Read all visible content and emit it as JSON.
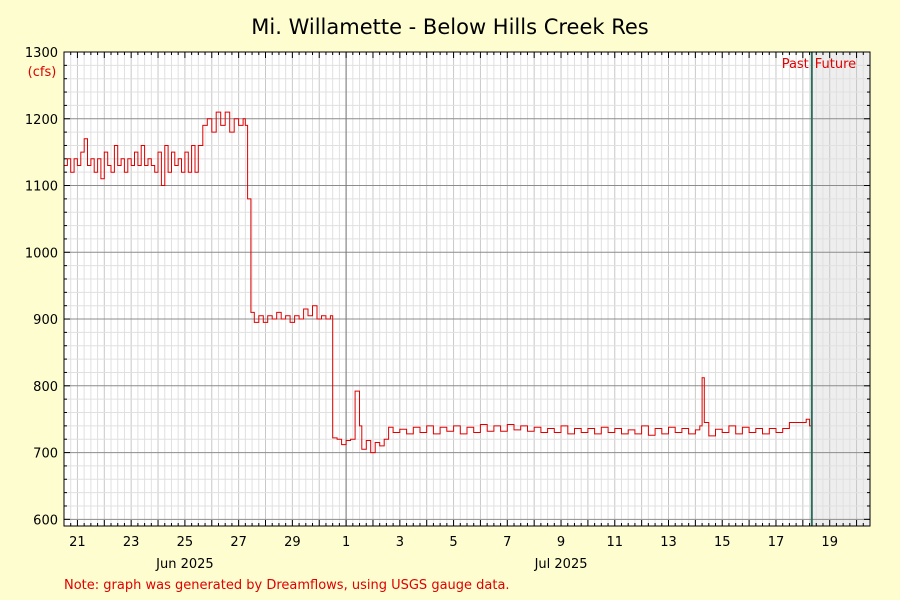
{
  "chart_data": {
    "type": "line",
    "title": "Mi. Willamette - Below Hills Creek Res",
    "ylabel": "(cfs)",
    "ylim": [
      590,
      1300
    ],
    "y_ticks": [
      600,
      700,
      800,
      900,
      1000,
      1100,
      1200,
      1300
    ],
    "xlim": [
      "2025-06-20T12:00",
      "2025-07-20T12:00"
    ],
    "x_tick_labels": [
      {
        "date": "2025-06-21",
        "label": "21"
      },
      {
        "date": "2025-06-23",
        "label": "23"
      },
      {
        "date": "2025-06-25",
        "label": "25"
      },
      {
        "date": "2025-06-27",
        "label": "27"
      },
      {
        "date": "2025-06-29",
        "label": "29"
      },
      {
        "date": "2025-07-01",
        "label": "1"
      },
      {
        "date": "2025-07-03",
        "label": "3"
      },
      {
        "date": "2025-07-05",
        "label": "5"
      },
      {
        "date": "2025-07-07",
        "label": "7"
      },
      {
        "date": "2025-07-09",
        "label": "9"
      },
      {
        "date": "2025-07-11",
        "label": "11"
      },
      {
        "date": "2025-07-13",
        "label": "13"
      },
      {
        "date": "2025-07-15",
        "label": "15"
      },
      {
        "date": "2025-07-17",
        "label": "17"
      },
      {
        "date": "2025-07-19",
        "label": "19"
      }
    ],
    "month_labels": [
      {
        "date": "2025-06-25",
        "label": "Jun 2025"
      },
      {
        "date": "2025-07-09",
        "label": "Jul 2025"
      }
    ],
    "past_label": "Past",
    "future_label": "Future",
    "now": "2025-07-18T08:00",
    "grid": true,
    "series": [
      {
        "color": "#e00000",
        "points": [
          [
            "2025-06-20T12:00",
            1130
          ],
          [
            "2025-06-20T15:00",
            1140
          ],
          [
            "2025-06-20T18:00",
            1120
          ],
          [
            "2025-06-20T21:00",
            1140
          ],
          [
            "2025-06-21T00:00",
            1130
          ],
          [
            "2025-06-21T03:00",
            1150
          ],
          [
            "2025-06-21T06:00",
            1170
          ],
          [
            "2025-06-21T09:00",
            1130
          ],
          [
            "2025-06-21T12:00",
            1140
          ],
          [
            "2025-06-21T15:00",
            1120
          ],
          [
            "2025-06-21T18:00",
            1140
          ],
          [
            "2025-06-21T21:00",
            1110
          ],
          [
            "2025-06-22T00:00",
            1150
          ],
          [
            "2025-06-22T03:00",
            1130
          ],
          [
            "2025-06-22T06:00",
            1120
          ],
          [
            "2025-06-22T09:00",
            1160
          ],
          [
            "2025-06-22T12:00",
            1130
          ],
          [
            "2025-06-22T15:00",
            1140
          ],
          [
            "2025-06-22T18:00",
            1120
          ],
          [
            "2025-06-22T21:00",
            1140
          ],
          [
            "2025-06-23T00:00",
            1130
          ],
          [
            "2025-06-23T03:00",
            1150
          ],
          [
            "2025-06-23T06:00",
            1130
          ],
          [
            "2025-06-23T09:00",
            1160
          ],
          [
            "2025-06-23T12:00",
            1130
          ],
          [
            "2025-06-23T15:00",
            1140
          ],
          [
            "2025-06-23T18:00",
            1130
          ],
          [
            "2025-06-23T21:00",
            1120
          ],
          [
            "2025-06-24T00:00",
            1150
          ],
          [
            "2025-06-24T03:00",
            1100
          ],
          [
            "2025-06-24T06:00",
            1160
          ],
          [
            "2025-06-24T09:00",
            1120
          ],
          [
            "2025-06-24T12:00",
            1150
          ],
          [
            "2025-06-24T15:00",
            1130
          ],
          [
            "2025-06-24T18:00",
            1140
          ],
          [
            "2025-06-24T21:00",
            1120
          ],
          [
            "2025-06-25T00:00",
            1150
          ],
          [
            "2025-06-25T03:00",
            1120
          ],
          [
            "2025-06-25T06:00",
            1160
          ],
          [
            "2025-06-25T09:00",
            1120
          ],
          [
            "2025-06-25T12:00",
            1160
          ],
          [
            "2025-06-25T16:00",
            1190
          ],
          [
            "2025-06-25T20:00",
            1200
          ],
          [
            "2025-06-26T00:00",
            1180
          ],
          [
            "2025-06-26T04:00",
            1210
          ],
          [
            "2025-06-26T08:00",
            1190
          ],
          [
            "2025-06-26T12:00",
            1210
          ],
          [
            "2025-06-26T16:00",
            1180
          ],
          [
            "2025-06-26T20:00",
            1200
          ],
          [
            "2025-06-27T00:00",
            1190
          ],
          [
            "2025-06-27T04:00",
            1200
          ],
          [
            "2025-06-27T06:00",
            1190
          ],
          [
            "2025-06-27T08:00",
            1080
          ],
          [
            "2025-06-27T11:00",
            910
          ],
          [
            "2025-06-27T14:00",
            895
          ],
          [
            "2025-06-27T18:00",
            905
          ],
          [
            "2025-06-27T22:00",
            895
          ],
          [
            "2025-06-28T02:00",
            905
          ],
          [
            "2025-06-28T06:00",
            900
          ],
          [
            "2025-06-28T10:00",
            910
          ],
          [
            "2025-06-28T14:00",
            900
          ],
          [
            "2025-06-28T18:00",
            905
          ],
          [
            "2025-06-28T22:00",
            895
          ],
          [
            "2025-06-29T02:00",
            905
          ],
          [
            "2025-06-29T06:00",
            900
          ],
          [
            "2025-06-29T10:00",
            915
          ],
          [
            "2025-06-29T14:00",
            905
          ],
          [
            "2025-06-29T18:00",
            920
          ],
          [
            "2025-06-29T22:00",
            900
          ],
          [
            "2025-06-30T02:00",
            905
          ],
          [
            "2025-06-30T06:00",
            900
          ],
          [
            "2025-06-30T10:00",
            905
          ],
          [
            "2025-06-30T12:00",
            722
          ],
          [
            "2025-06-30T16:00",
            720
          ],
          [
            "2025-06-30T20:00",
            712
          ],
          [
            "2025-07-01T00:00",
            718
          ],
          [
            "2025-07-01T04:00",
            720
          ],
          [
            "2025-07-01T08:00",
            792
          ],
          [
            "2025-07-01T12:00",
            740
          ],
          [
            "2025-07-01T14:00",
            705
          ],
          [
            "2025-07-01T18:00",
            718
          ],
          [
            "2025-07-01T22:00",
            700
          ],
          [
            "2025-07-02T02:00",
            715
          ],
          [
            "2025-07-02T06:00",
            710
          ],
          [
            "2025-07-02T10:00",
            720
          ],
          [
            "2025-07-02T14:00",
            738
          ],
          [
            "2025-07-02T18:00",
            730
          ],
          [
            "2025-07-03T00:00",
            735
          ],
          [
            "2025-07-03T06:00",
            728
          ],
          [
            "2025-07-03T12:00",
            738
          ],
          [
            "2025-07-03T18:00",
            730
          ],
          [
            "2025-07-04T00:00",
            740
          ],
          [
            "2025-07-04T06:00",
            728
          ],
          [
            "2025-07-04T12:00",
            738
          ],
          [
            "2025-07-04T18:00",
            732
          ],
          [
            "2025-07-05T00:00",
            740
          ],
          [
            "2025-07-05T06:00",
            728
          ],
          [
            "2025-07-05T12:00",
            738
          ],
          [
            "2025-07-05T18:00",
            730
          ],
          [
            "2025-07-06T00:00",
            742
          ],
          [
            "2025-07-06T06:00",
            732
          ],
          [
            "2025-07-06T12:00",
            740
          ],
          [
            "2025-07-06T18:00",
            732
          ],
          [
            "2025-07-07T00:00",
            742
          ],
          [
            "2025-07-07T06:00",
            734
          ],
          [
            "2025-07-07T12:00",
            740
          ],
          [
            "2025-07-07T18:00",
            732
          ],
          [
            "2025-07-08T00:00",
            738
          ],
          [
            "2025-07-08T06:00",
            730
          ],
          [
            "2025-07-08T12:00",
            736
          ],
          [
            "2025-07-08T18:00",
            730
          ],
          [
            "2025-07-09T00:00",
            740
          ],
          [
            "2025-07-09T06:00",
            728
          ],
          [
            "2025-07-09T12:00",
            736
          ],
          [
            "2025-07-09T18:00",
            730
          ],
          [
            "2025-07-10T00:00",
            736
          ],
          [
            "2025-07-10T06:00",
            728
          ],
          [
            "2025-07-10T12:00",
            738
          ],
          [
            "2025-07-10T18:00",
            730
          ],
          [
            "2025-07-11T00:00",
            736
          ],
          [
            "2025-07-11T06:00",
            728
          ],
          [
            "2025-07-11T12:00",
            734
          ],
          [
            "2025-07-11T18:00",
            728
          ],
          [
            "2025-07-12T00:00",
            740
          ],
          [
            "2025-07-12T06:00",
            726
          ],
          [
            "2025-07-12T12:00",
            736
          ],
          [
            "2025-07-12T18:00",
            728
          ],
          [
            "2025-07-13T00:00",
            738
          ],
          [
            "2025-07-13T06:00",
            730
          ],
          [
            "2025-07-13T12:00",
            736
          ],
          [
            "2025-07-13T18:00",
            728
          ],
          [
            "2025-07-14T00:00",
            734
          ],
          [
            "2025-07-14T04:00",
            740
          ],
          [
            "2025-07-14T06:00",
            812
          ],
          [
            "2025-07-14T08:00",
            745
          ],
          [
            "2025-07-14T12:00",
            725
          ],
          [
            "2025-07-14T18:00",
            735
          ],
          [
            "2025-07-15T00:00",
            730
          ],
          [
            "2025-07-15T06:00",
            740
          ],
          [
            "2025-07-15T12:00",
            728
          ],
          [
            "2025-07-15T18:00",
            738
          ],
          [
            "2025-07-16T00:00",
            730
          ],
          [
            "2025-07-16T06:00",
            736
          ],
          [
            "2025-07-16T12:00",
            728
          ],
          [
            "2025-07-16T18:00",
            736
          ],
          [
            "2025-07-17T00:00",
            730
          ],
          [
            "2025-07-17T06:00",
            736
          ],
          [
            "2025-07-17T12:00",
            745
          ],
          [
            "2025-07-17T18:00",
            745
          ],
          [
            "2025-07-18T00:00",
            745
          ],
          [
            "2025-07-18T03:00",
            750
          ],
          [
            "2025-07-18T06:00",
            740
          ],
          [
            "2025-07-18T08:00",
            738
          ]
        ]
      }
    ]
  },
  "note": "Note: graph was generated by Dreamflows, using USGS gauge data."
}
